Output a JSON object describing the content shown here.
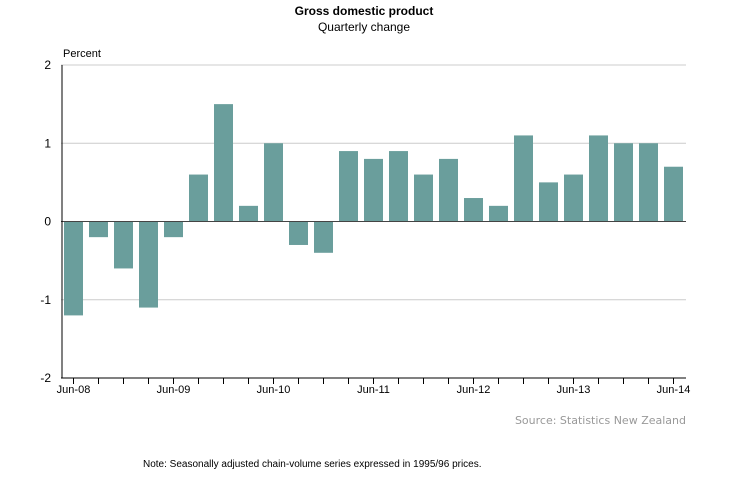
{
  "chart_data": {
    "type": "bar",
    "title": "Gross domestic product",
    "subtitle": "Quarterly change",
    "ylabel": "Percent",
    "xlabel": "",
    "ylim": [
      -2,
      2
    ],
    "yticks": [
      "2",
      "1",
      "0",
      "-1",
      "-2"
    ],
    "ytick_values": [
      2,
      1,
      0,
      -1,
      -2
    ],
    "xtick_labels": [
      {
        "index": 0,
        "label": "Jun-08"
      },
      {
        "index": 4,
        "label": "Jun-09"
      },
      {
        "index": 8,
        "label": "Jun-10"
      },
      {
        "index": 12,
        "label": "Jun-11"
      },
      {
        "index": 16,
        "label": "Jun-12"
      },
      {
        "index": 20,
        "label": "Jun-13"
      },
      {
        "index": 24,
        "label": "Jun-14"
      }
    ],
    "values": [
      -1.2,
      -0.2,
      -0.6,
      -1.1,
      -0.2,
      0.6,
      1.5,
      0.2,
      1.0,
      -0.3,
      -0.4,
      0.9,
      0.8,
      0.9,
      0.6,
      0.8,
      0.3,
      0.2,
      1.1,
      0.5,
      0.6,
      1.1,
      1.0,
      1.0,
      0.7
    ],
    "bar_color": "#6a9e9c",
    "grid": true,
    "source": "Source: Statistics New Zealand",
    "note": "Note: Seasonally adjusted chain-volume series expressed in 1995/96 prices."
  }
}
